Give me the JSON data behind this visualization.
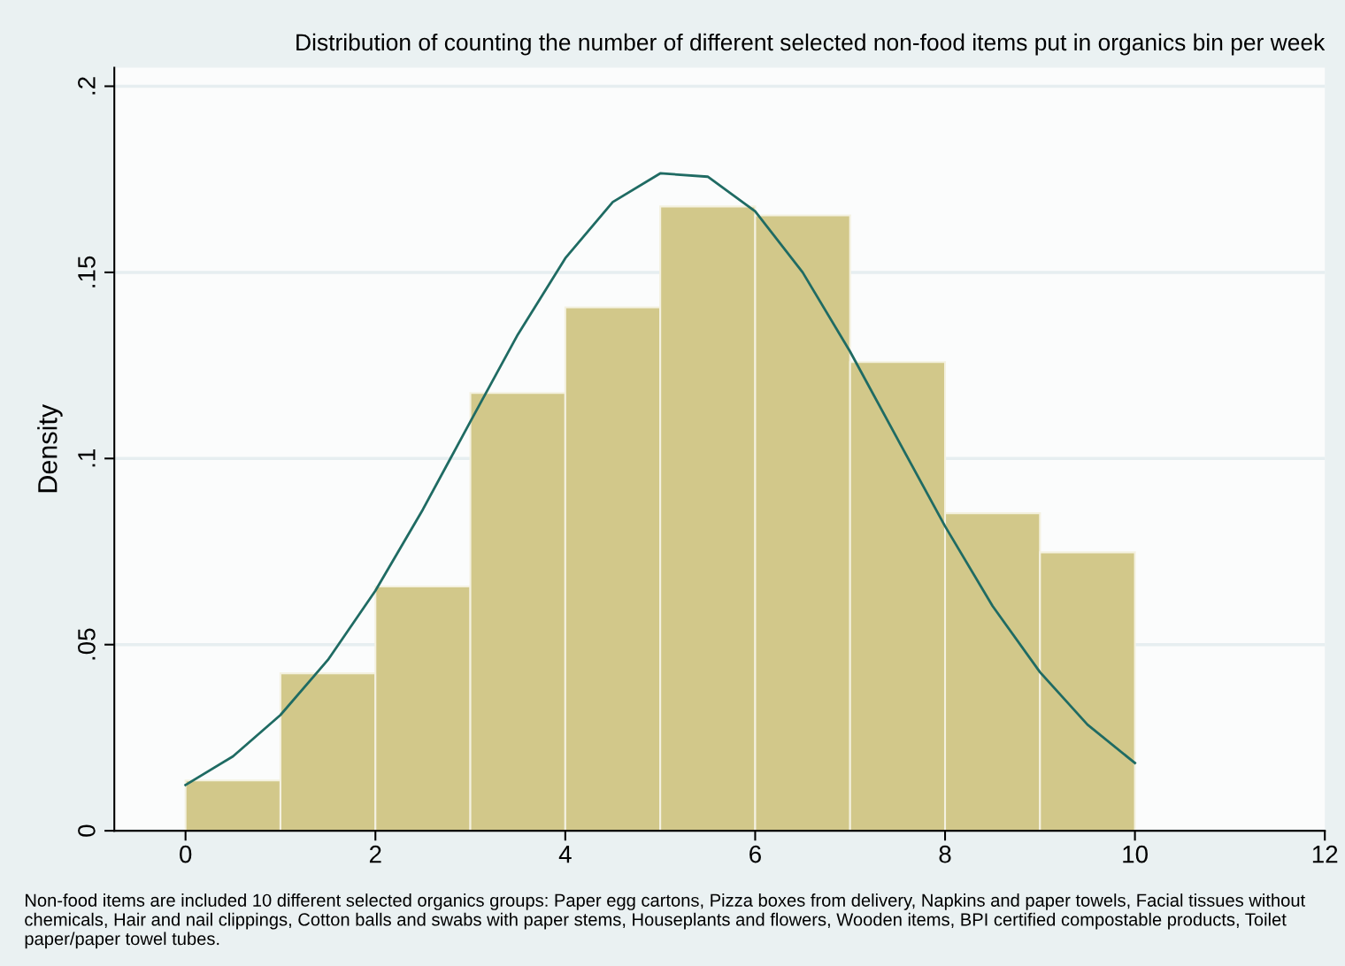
{
  "chart_data": {
    "type": "histogram",
    "title": "Distribution of counting the number of different selected non-food items put in organics bin per week",
    "ylabel": "Density",
    "bins": [
      0,
      1,
      2,
      3,
      4,
      5,
      6,
      7,
      8,
      9,
      10
    ],
    "values": [
      0.0135,
      0.0423,
      0.0656,
      0.1176,
      0.1406,
      0.1677,
      0.1653,
      0.1259,
      0.0853,
      0.0748
    ],
    "color": "#d2c88a",
    "series": [
      {
        "type": "line",
        "color": "#1f6b63",
        "x": [
          0,
          0.5,
          1,
          1.5,
          2,
          2.5,
          3,
          3.5,
          4,
          4.5,
          5,
          5.5,
          6,
          6.5,
          7,
          7.5,
          8,
          8.5,
          9,
          9.5,
          10
        ],
        "values": [
          0.0123,
          0.02,
          0.0311,
          0.0459,
          0.0645,
          0.0863,
          0.1099,
          0.1333,
          0.1538,
          0.1689,
          0.1766,
          0.1757,
          0.1664,
          0.15,
          0.1287,
          0.1052,
          0.0818,
          0.0604,
          0.0426,
          0.0285,
          0.0182
        ]
      }
    ],
    "xlim": [
      -0.75,
      12
    ],
    "xticks": [
      0,
      2,
      4,
      6,
      8,
      10,
      12
    ],
    "ylim": [
      0,
      0.205
    ],
    "yticks": [
      0,
      {
        "value": 0.05,
        "label": ".05"
      },
      {
        "value": 0.1,
        "label": ".1"
      },
      {
        "value": 0.15,
        "label": ".15"
      },
      {
        "value": 0.2,
        "label": ".2"
      }
    ],
    "grid": "y",
    "legend": false,
    "annotations": [
      "Non-food items are included 10 different selected organics groups: Paper egg cartons, Pizza boxes from delivery, Napkins and paper towels, Facial tissues without chemicals, Hair and nail clippings, Cotton balls and swabs with paper stems, Houseplants and flowers, Wooden items, BPI certified compostable products, Toilet paper/paper towel tubes."
    ]
  }
}
